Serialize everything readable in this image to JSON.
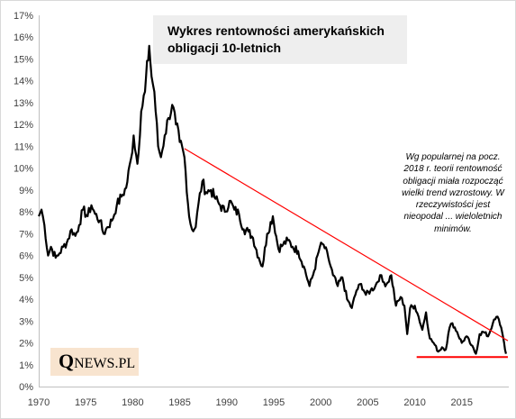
{
  "chart_data": {
    "type": "line",
    "title": "Wykres rentowności amerykańskich obligacji 10-letnich",
    "xlabel": "",
    "ylabel": "",
    "xlim": [
      1970,
      2020
    ],
    "ylim": [
      0,
      17
    ],
    "x_ticks": [
      "1970",
      "1975",
      "1980",
      "1985",
      "1990",
      "1995",
      "2000",
      "2005",
      "2010",
      "2015"
    ],
    "y_ticks": [
      "0%",
      "1%",
      "2%",
      "3%",
      "4%",
      "5%",
      "6%",
      "7%",
      "8%",
      "9%",
      "10%",
      "11%",
      "12%",
      "13%",
      "14%",
      "15%",
      "16%",
      "17%"
    ],
    "grid": false,
    "line_color": "#000000",
    "series": [
      {
        "x": [
          1970,
          1970.3,
          1970.6,
          1971,
          1971.3,
          1971.8,
          1972.2,
          1972.6,
          1973,
          1973.5,
          1973.9,
          1974.3,
          1974.7,
          1975.2,
          1975.6,
          1976,
          1976.5,
          1976.9,
          1977.3,
          1977.8,
          1978.3,
          1978.8,
          1979.3,
          1979.8,
          1980.1,
          1980.5,
          1980.9,
          1981.3,
          1981.75,
          1982,
          1982.3,
          1982.7,
          1983,
          1983.4,
          1983.8,
          1984.2,
          1984.6,
          1985,
          1985.5,
          1986,
          1986.3,
          1986.7,
          1987,
          1987.4,
          1987.8,
          1988.3,
          1988.8,
          1989.3,
          1989.8,
          1990.3,
          1990.8,
          1991.3,
          1991.8,
          1992.3,
          1992.8,
          1993.4,
          1993.8,
          1994.3,
          1994.9,
          1995.5,
          1996,
          1996.5,
          1997,
          1997.6,
          1998.2,
          1998.8,
          1999.3,
          1999.9,
          2000.3,
          2000.8,
          2001.3,
          2001.8,
          2002.3,
          2002.8,
          2003.3,
          2003.8,
          2004.3,
          2004.8,
          2005.3,
          2005.8,
          2006.3,
          2006.6,
          2007,
          2007.5,
          2008,
          2008.5,
          2008.9,
          2009.2,
          2009.5,
          2010,
          2010.4,
          2010.8,
          2011.2,
          2011.6,
          2012,
          2012.5,
          2012.9,
          2013.3,
          2013.7,
          2014,
          2014.5,
          2015,
          2015.5,
          2016,
          2016.5,
          2016.9,
          2017.3,
          2017.8,
          2018.3,
          2018.8,
          2019.2,
          2019.5,
          2019.7
        ],
        "values": [
          7.8,
          8.1,
          7.4,
          6.0,
          6.4,
          5.9,
          6.1,
          6.4,
          6.6,
          7.2,
          6.9,
          7.4,
          8.1,
          7.8,
          8.3,
          7.9,
          7.6,
          7.0,
          7.3,
          7.6,
          8.3,
          8.7,
          9.1,
          10.4,
          11.5,
          10.2,
          12.6,
          13.5,
          15.6,
          14.2,
          13.5,
          11.0,
          10.5,
          11.5,
          12.3,
          12.9,
          12.0,
          11.2,
          10.5,
          7.8,
          7.2,
          7.3,
          8.4,
          9.4,
          8.9,
          9.0,
          8.6,
          8.3,
          8.0,
          8.5,
          8.1,
          7.9,
          7.2,
          7.1,
          6.8,
          5.9,
          5.5,
          7.0,
          7.8,
          6.3,
          6.5,
          6.7,
          6.4,
          6.2,
          5.5,
          4.6,
          5.3,
          6.4,
          6.5,
          5.9,
          5.1,
          4.6,
          5.0,
          4.0,
          3.6,
          4.4,
          4.7,
          4.2,
          4.4,
          4.6,
          5.1,
          4.8,
          4.7,
          5.1,
          3.7,
          4.1,
          3.7,
          2.4,
          3.6,
          3.7,
          3.2,
          2.6,
          3.4,
          2.2,
          2.0,
          1.6,
          1.8,
          1.7,
          2.7,
          2.9,
          2.5,
          2.0,
          2.3,
          1.9,
          1.5,
          2.4,
          2.5,
          2.3,
          2.9,
          3.2,
          2.7,
          2.0,
          1.5
        ]
      }
    ],
    "annotations": {
      "trend_line": {
        "from": [
          1985.5,
          10.9
        ],
        "to": [
          2019.9,
          2.1
        ],
        "color": "#ff0000"
      },
      "support_line": {
        "from": [
          2010.2,
          1.35
        ],
        "to": [
          2019.9,
          1.35
        ],
        "color": "#ff0000"
      },
      "note": "Wg popularnej na pocz. 2018 r. teorii rentowność obligacji miała rozpocząć wielki trend wzrostowy. W rzeczywistości jest nieopodal ... wieloletnich minimów."
    }
  },
  "logo": {
    "q": "Q",
    "rest": "NEWS.PL"
  }
}
